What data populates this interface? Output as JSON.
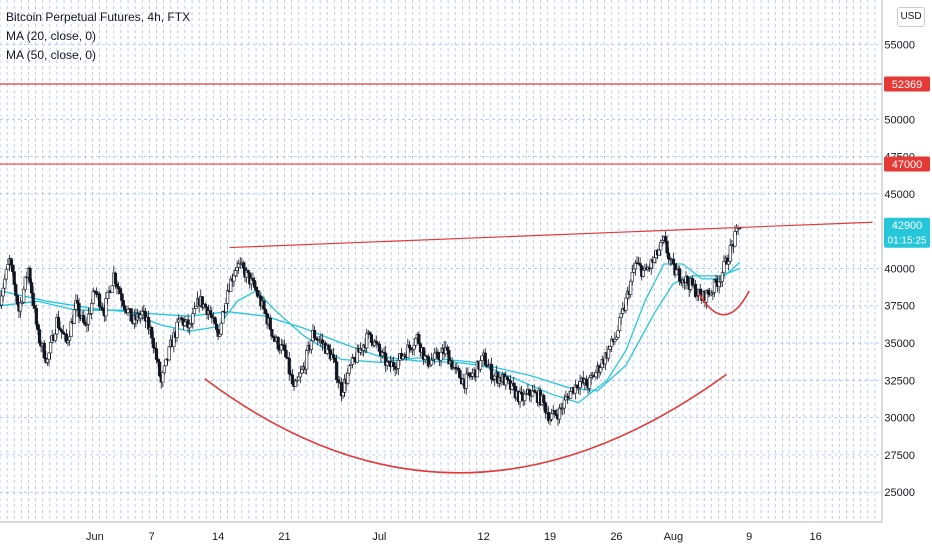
{
  "legend": {
    "title": "Bitcoin Perpetual Futures, 4h, FTX",
    "ma1": "MA (20, close, 0)",
    "ma2": "MA (50, close, 0)"
  },
  "currency_label": "USD",
  "colors": {
    "level_line": "#e53935",
    "pattern_line": "#e53935",
    "ma_line": "#26c6da",
    "grid": "#5b8cff",
    "candle": "#131722",
    "price_tag_bg": "#26c6da"
  },
  "chart_data": {
    "type": "candlestick",
    "title": "Bitcoin Perpetual Futures, 4h, FTX",
    "y_range": [
      23000,
      58000
    ],
    "y_ticks": [
      25000,
      27500,
      30000,
      32500,
      35000,
      37500,
      40000,
      45000,
      47500,
      50000,
      55000
    ],
    "x_labels": [
      "Jun",
      "7",
      "14",
      "21",
      "Jul",
      "12",
      "19",
      "26",
      "Aug",
      "9",
      "16"
    ],
    "x_label_days": [
      0,
      6,
      13,
      20,
      30,
      41,
      48,
      55,
      61,
      69,
      76
    ],
    "x_range_days": [
      -10,
      83
    ],
    "price_series": [
      [
        -10,
        38000
      ],
      [
        -9,
        40500
      ],
      [
        -8,
        37200
      ],
      [
        -7,
        40000
      ],
      [
        -6,
        35500
      ],
      [
        -5,
        33800
      ],
      [
        -4,
        36500
      ],
      [
        -3,
        35000
      ],
      [
        -2,
        37500
      ],
      [
        -1,
        36000
      ],
      [
        0,
        38500
      ],
      [
        1,
        37200
      ],
      [
        2,
        39600
      ],
      [
        3,
        37800
      ],
      [
        4,
        36400
      ],
      [
        5,
        37000
      ],
      [
        6,
        35600
      ],
      [
        7,
        32300
      ],
      [
        8,
        34800
      ],
      [
        9,
        36600
      ],
      [
        10,
        36000
      ],
      [
        11,
        37900
      ],
      [
        12,
        37200
      ],
      [
        13,
        35400
      ],
      [
        14,
        38600
      ],
      [
        15,
        40300
      ],
      [
        16,
        39600
      ],
      [
        17,
        38500
      ],
      [
        18,
        36900
      ],
      [
        19,
        35200
      ],
      [
        20,
        34400
      ],
      [
        21,
        31800
      ],
      [
        22,
        33300
      ],
      [
        23,
        35600
      ],
      [
        24,
        35000
      ],
      [
        25,
        34100
      ],
      [
        26,
        31800
      ],
      [
        27,
        33400
      ],
      [
        28,
        34600
      ],
      [
        29,
        35600
      ],
      [
        30,
        34400
      ],
      [
        31,
        33400
      ],
      [
        32,
        33800
      ],
      [
        33,
        34600
      ],
      [
        34,
        35400
      ],
      [
        35,
        33700
      ],
      [
        36,
        34000
      ],
      [
        37,
        34500
      ],
      [
        38,
        33100
      ],
      [
        39,
        32400
      ],
      [
        40,
        33000
      ],
      [
        41,
        34000
      ],
      [
        42,
        32800
      ],
      [
        43,
        32600
      ],
      [
        44,
        31900
      ],
      [
        45,
        31200
      ],
      [
        46,
        31700
      ],
      [
        47,
        31300
      ],
      [
        48,
        30000
      ],
      [
        49,
        30400
      ],
      [
        50,
        31600
      ],
      [
        51,
        32400
      ],
      [
        52,
        32200
      ],
      [
        53,
        33200
      ],
      [
        54,
        34300
      ],
      [
        55,
        35500
      ],
      [
        56,
        37800
      ],
      [
        57,
        40300
      ],
      [
        58,
        39700
      ],
      [
        59,
        40600
      ],
      [
        60,
        41800
      ],
      [
        61,
        39900
      ],
      [
        62,
        39400
      ],
      [
        63,
        38800
      ],
      [
        64,
        38000
      ],
      [
        65,
        38500
      ],
      [
        66,
        39500
      ],
      [
        67,
        41200
      ],
      [
        68,
        42900
      ]
    ],
    "ma_20": [
      [
        -10,
        37500
      ],
      [
        -6,
        37800
      ],
      [
        -2,
        37200
      ],
      [
        3,
        37200
      ],
      [
        7,
        36200
      ],
      [
        10,
        35800
      ],
      [
        13,
        36100
      ],
      [
        15,
        37800
      ],
      [
        17,
        38500
      ],
      [
        19,
        37200
      ],
      [
        22,
        35500
      ],
      [
        26,
        33900
      ],
      [
        30,
        33700
      ],
      [
        34,
        34000
      ],
      [
        37,
        33900
      ],
      [
        40,
        33700
      ],
      [
        44,
        32700
      ],
      [
        48,
        31600
      ],
      [
        51,
        31000
      ],
      [
        54,
        32500
      ],
      [
        56,
        34500
      ],
      [
        58,
        37800
      ],
      [
        60,
        40300
      ],
      [
        62,
        40300
      ],
      [
        64,
        39300
      ],
      [
        66,
        39300
      ],
      [
        68,
        40400
      ]
    ],
    "ma_50": [
      [
        -10,
        38500
      ],
      [
        -5,
        37800
      ],
      [
        0,
        37300
      ],
      [
        5,
        37000
      ],
      [
        10,
        36800
      ],
      [
        14,
        37100
      ],
      [
        18,
        36800
      ],
      [
        22,
        36000
      ],
      [
        26,
        35000
      ],
      [
        30,
        34100
      ],
      [
        34,
        33800
      ],
      [
        38,
        33700
      ],
      [
        42,
        33400
      ],
      [
        46,
        32800
      ],
      [
        50,
        32000
      ],
      [
        53,
        31800
      ],
      [
        56,
        33500
      ],
      [
        59,
        37000
      ],
      [
        61,
        39000
      ],
      [
        63,
        39500
      ],
      [
        66,
        39500
      ],
      [
        68,
        40000
      ]
    ],
    "resistance_trendline": [
      [
        14.2,
        41400
      ],
      [
        82,
        43100
      ]
    ],
    "horizontal_levels": [
      52369,
      47000
    ],
    "cup_curve": [
      [
        11.6,
        32600
      ],
      [
        38.7,
        26300
      ],
      [
        66.6,
        32900
      ]
    ],
    "handle_curve": [
      [
        63.7,
        38300
      ],
      [
        66.4,
        36900
      ],
      [
        69,
        38500
      ]
    ],
    "price_labels": [
      {
        "value": 52369,
        "label": "52369"
      },
      {
        "value": 47000,
        "label": "47000"
      },
      {
        "value": 42900,
        "label": "42900",
        "sublabel": "01:15:25"
      }
    ]
  }
}
